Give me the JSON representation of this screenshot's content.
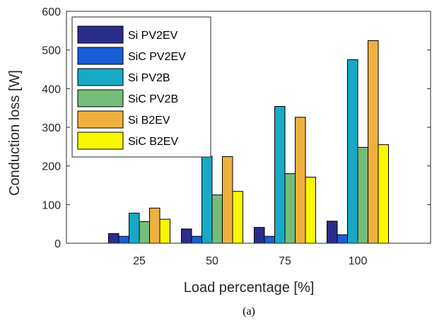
{
  "chart_data": {
    "type": "bar",
    "categories": [
      "25",
      "50",
      "75",
      "100"
    ],
    "series": [
      {
        "name": "Si PV2EV",
        "color": "#2b2d8c",
        "values": [
          25,
          37,
          41,
          57
        ]
      },
      {
        "name": "SiC PV2EV",
        "color": "#1a5fd6",
        "values": [
          18,
          18,
          18,
          22
        ]
      },
      {
        "name": "Si PV2B",
        "color": "#17a9c6",
        "values": [
          78,
          225,
          354,
          475
        ]
      },
      {
        "name": "SiC PV2B",
        "color": "#74bd7a",
        "values": [
          56,
          125,
          180,
          248
        ]
      },
      {
        "name": "Si B2EV",
        "color": "#f0b040",
        "values": [
          91,
          224,
          326,
          524
        ]
      },
      {
        "name": "SiC B2EV",
        "color": "#f8f800",
        "values": [
          62,
          134,
          171,
          255
        ]
      }
    ],
    "title": "",
    "xlabel": "Load percentage [%]",
    "ylabel": "Conduction loss [W]",
    "ylim": [
      0,
      600
    ],
    "yticks": [
      "0",
      "100",
      "200",
      "300",
      "400",
      "500",
      "600"
    ],
    "legend_position": "top-left",
    "grid": false
  },
  "caption": "(a)"
}
